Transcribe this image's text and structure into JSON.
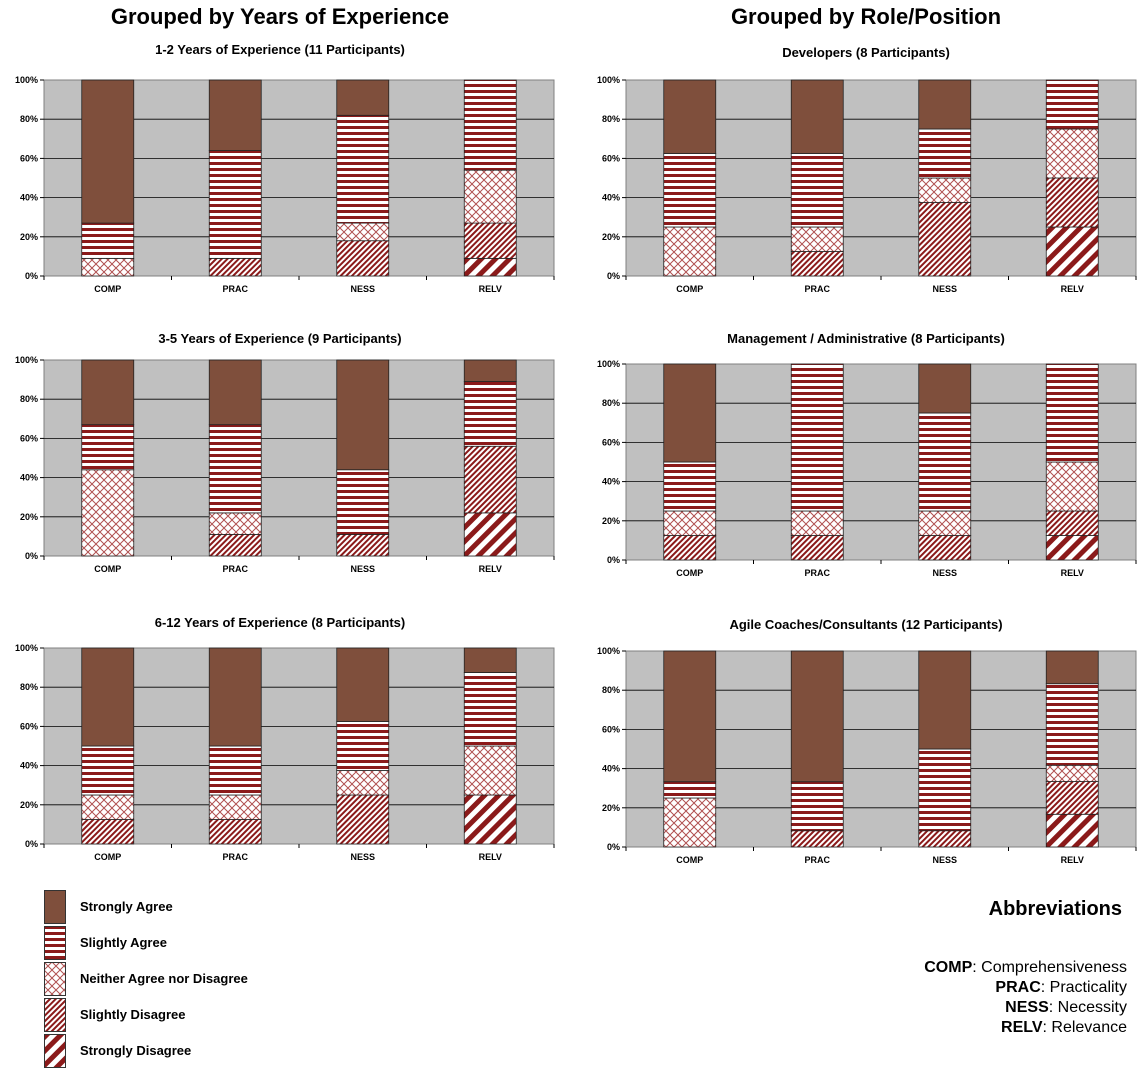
{
  "columns": [
    {
      "title": "Grouped by Years of Experience"
    },
    {
      "title": "Grouped by Role/Position"
    }
  ],
  "chart_data": [
    {
      "type": "bar",
      "stacked": true,
      "title": "1-2 Years of Experience (11 Participants)",
      "categories": [
        "COMP",
        "PRAC",
        "NESS",
        "RELV"
      ],
      "yticks": [
        "0%",
        "20%",
        "40%",
        "60%",
        "80%",
        "100%"
      ],
      "ylim": [
        0,
        100
      ],
      "series": [
        {
          "name": "Strongly Disagree",
          "values": [
            0,
            0,
            0,
            9
          ]
        },
        {
          "name": "Slightly Disagree",
          "values": [
            0,
            9,
            18,
            18
          ]
        },
        {
          "name": "Neither Agree nor Disagree",
          "values": [
            9,
            0,
            9,
            27
          ]
        },
        {
          "name": "Slightly Agree",
          "values": [
            18,
            55,
            55,
            46
          ]
        },
        {
          "name": "Strongly Agree",
          "values": [
            73,
            36,
            18,
            0
          ]
        }
      ]
    },
    {
      "type": "bar",
      "stacked": true,
      "title": "3-5 Years of Experience (9 Participants)",
      "categories": [
        "COMP",
        "PRAC",
        "NESS",
        "RELV"
      ],
      "yticks": [
        "0%",
        "20%",
        "40%",
        "60%",
        "80%",
        "100%"
      ],
      "ylim": [
        0,
        100
      ],
      "series": [
        {
          "name": "Strongly Disagree",
          "values": [
            0,
            0,
            0,
            22
          ]
        },
        {
          "name": "Slightly Disagree",
          "values": [
            0,
            11,
            11,
            34
          ]
        },
        {
          "name": "Neither Agree nor Disagree",
          "values": [
            44,
            11,
            0,
            0
          ]
        },
        {
          "name": "Slightly Agree",
          "values": [
            23,
            45,
            33,
            33
          ]
        },
        {
          "name": "Strongly Agree",
          "values": [
            33,
            33,
            56,
            11
          ]
        }
      ]
    },
    {
      "type": "bar",
      "stacked": true,
      "title": "6-12 Years of Experience (8 Participants)",
      "categories": [
        "COMP",
        "PRAC",
        "NESS",
        "RELV"
      ],
      "yticks": [
        "0%",
        "20%",
        "40%",
        "60%",
        "80%",
        "100%"
      ],
      "ylim": [
        0,
        100
      ],
      "series": [
        {
          "name": "Strongly Disagree",
          "values": [
            0,
            0,
            0,
            25
          ]
        },
        {
          "name": "Slightly Disagree",
          "values": [
            12.5,
            12.5,
            25,
            0
          ]
        },
        {
          "name": "Neither Agree nor Disagree",
          "values": [
            12.5,
            12.5,
            12.5,
            25
          ]
        },
        {
          "name": "Slightly Agree",
          "values": [
            25,
            25,
            25,
            37.5
          ]
        },
        {
          "name": "Strongly Agree",
          "values": [
            50,
            50,
            37.5,
            12.5
          ]
        }
      ]
    },
    {
      "type": "bar",
      "stacked": true,
      "title": "Developers  (8 Participants)",
      "categories": [
        "COMP",
        "PRAC",
        "NESS",
        "RELV"
      ],
      "yticks": [
        "0%",
        "20%",
        "40%",
        "60%",
        "80%",
        "100%"
      ],
      "ylim": [
        0,
        100
      ],
      "series": [
        {
          "name": "Strongly Disagree",
          "values": [
            0,
            0,
            0,
            25
          ]
        },
        {
          "name": "Slightly Disagree",
          "values": [
            0,
            12.5,
            37.5,
            25
          ]
        },
        {
          "name": "Neither Agree nor Disagree",
          "values": [
            25,
            12.5,
            12.5,
            25
          ]
        },
        {
          "name": "Slightly Agree",
          "values": [
            37.5,
            37.5,
            25,
            25
          ]
        },
        {
          "name": "Strongly Agree",
          "values": [
            37.5,
            37.5,
            25,
            0
          ]
        }
      ]
    },
    {
      "type": "bar",
      "stacked": true,
      "title": "Management / Administrative  (8 Participants)",
      "categories": [
        "COMP",
        "PRAC",
        "NESS",
        "RELV"
      ],
      "yticks": [
        "0%",
        "20%",
        "40%",
        "60%",
        "80%",
        "100%"
      ],
      "ylim": [
        0,
        100
      ],
      "series": [
        {
          "name": "Strongly Disagree",
          "values": [
            0,
            0,
            0,
            12.5
          ]
        },
        {
          "name": "Slightly Disagree",
          "values": [
            12.5,
            12.5,
            12.5,
            12.5
          ]
        },
        {
          "name": "Neither Agree nor Disagree",
          "values": [
            12.5,
            12.5,
            12.5,
            25
          ]
        },
        {
          "name": "Slightly Agree",
          "values": [
            25,
            75,
            50,
            50
          ]
        },
        {
          "name": "Strongly Agree",
          "values": [
            50,
            0,
            25,
            0
          ]
        }
      ]
    },
    {
      "type": "bar",
      "stacked": true,
      "title": "Agile Coaches/Consultants  (12 Participants)",
      "categories": [
        "COMP",
        "PRAC",
        "NESS",
        "RELV"
      ],
      "yticks": [
        "0%",
        "20%",
        "40%",
        "60%",
        "80%",
        "100%"
      ],
      "ylim": [
        0,
        100
      ],
      "series": [
        {
          "name": "Strongly Disagree",
          "values": [
            0,
            0,
            0,
            16.7
          ]
        },
        {
          "name": "Slightly Disagree",
          "values": [
            0,
            8.3,
            8.3,
            16.7
          ]
        },
        {
          "name": "Neither Agree nor Disagree",
          "values": [
            25,
            0,
            0,
            8.3
          ]
        },
        {
          "name": "Slightly Agree",
          "values": [
            8.3,
            25,
            41.7,
            41.6
          ]
        },
        {
          "name": "Strongly Agree",
          "values": [
            66.7,
            66.7,
            50,
            16.7
          ]
        }
      ]
    }
  ],
  "legend": {
    "items": [
      {
        "label": "Strongly Agree",
        "pattern": "strongly-agree"
      },
      {
        "label": "Slightly Agree",
        "pattern": "slightly-agree"
      },
      {
        "label": "Neither Agree nor Disagree",
        "pattern": "neither"
      },
      {
        "label": "Slightly Disagree",
        "pattern": "slightly-disagree"
      },
      {
        "label": "Strongly Disagree",
        "pattern": "strongly-disagree"
      }
    ]
  },
  "abbreviations": {
    "title": "Abbreviations",
    "items": [
      {
        "key": "COMP",
        "sep": ": ",
        "value": "Comprehensiveness"
      },
      {
        "key": "PRAC",
        "sep": ": ",
        "value": "Practicality"
      },
      {
        "key": "NESS",
        "sep": ": ",
        "value": "Necessity"
      },
      {
        "key": "RELV",
        "sep": ": ",
        "value": "Relevance"
      }
    ]
  },
  "colors": {
    "plot_background": "#c0c0c0",
    "strongly_agree": "#7f4f3c",
    "stripe": "#8b1a1a",
    "stripe_background": "#ffffff"
  }
}
